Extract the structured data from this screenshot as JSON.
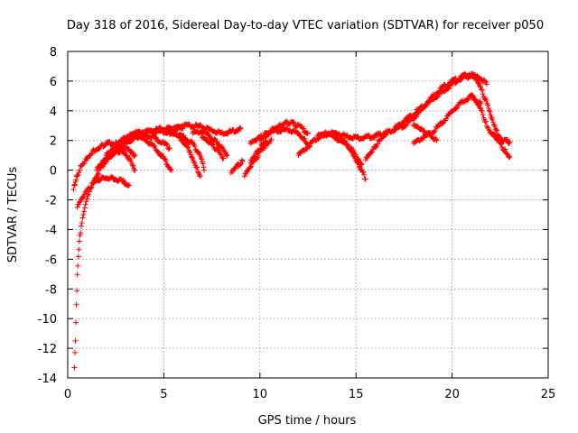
{
  "chart_data": {
    "type": "scatter",
    "title": "Day 318 of 2016, Sidereal Day-to-day VTEC variation (SDTVAR) for receiver p050",
    "xlabel": "GPS time / hours",
    "ylabel": "SDTVAR / TECUs",
    "xlim": [
      0,
      25
    ],
    "ylim": [
      -14,
      8
    ],
    "xticks": [
      0,
      5,
      10,
      15,
      20,
      25
    ],
    "xtick_labels": [
      "0",
      "5",
      "10",
      "15",
      "20",
      "25"
    ],
    "yticks": [
      -14,
      -12,
      -10,
      -8,
      -6,
      -4,
      -2,
      0,
      2,
      4,
      6,
      8
    ],
    "ytick_labels": [
      "-14",
      "-12",
      "-10",
      "-8",
      "-6",
      "-4",
      "-2",
      "0",
      "2",
      "4",
      "6",
      "8"
    ],
    "grid": true,
    "marker": "+",
    "color": "#ff0000",
    "series": [
      {
        "name": "s1",
        "x": [
          0.35,
          0.4,
          0.45,
          0.5,
          0.55,
          0.6,
          0.7,
          0.85,
          1.0,
          1.2,
          1.5,
          1.8,
          2.2,
          2.6,
          3.0,
          3.5,
          4.0,
          4.5,
          5.0,
          5.5,
          6.0
        ],
        "y": [
          -13.3,
          -11.5,
          -9.0,
          -7.0,
          -5.8,
          -4.8,
          -3.8,
          -2.8,
          -2.0,
          -1.2,
          -0.4,
          0.3,
          0.9,
          1.4,
          1.8,
          2.2,
          2.5,
          2.7,
          2.8,
          2.8,
          2.8
        ]
      },
      {
        "name": "s2",
        "x": [
          0.3,
          0.4,
          0.5,
          0.7,
          1.0,
          1.3,
          1.7,
          2.0,
          2.5,
          3.0,
          3.5
        ],
        "y": [
          -1.3,
          -0.8,
          -0.3,
          0.3,
          0.8,
          1.3,
          1.6,
          1.8,
          1.8,
          1.5,
          1.0
        ]
      },
      {
        "name": "s3",
        "x": [
          0.5,
          0.8,
          1.1,
          1.5,
          1.9,
          2.3,
          2.8,
          3.2
        ],
        "y": [
          -2.5,
          -1.8,
          -1.2,
          -0.7,
          -0.5,
          -0.5,
          -0.7,
          -1.0
        ]
      },
      {
        "name": "s4",
        "x": [
          1.5,
          2.0,
          2.5,
          3.0,
          3.5,
          4.0,
          4.5,
          5.0,
          5.3
        ],
        "y": [
          0.0,
          0.8,
          1.6,
          2.2,
          2.5,
          2.4,
          2.2,
          1.8,
          1.5
        ]
      },
      {
        "name": "s5",
        "x": [
          1.8,
          2.2,
          2.6,
          3.0,
          3.3,
          3.5
        ],
        "y": [
          0.5,
          1.0,
          1.3,
          1.1,
          0.6,
          0.0
        ]
      },
      {
        "name": "s6",
        "x": [
          2.0,
          2.5,
          3.0,
          3.5,
          4.0,
          4.5,
          5.0,
          5.4
        ],
        "y": [
          1.0,
          1.5,
          2.0,
          2.3,
          2.1,
          1.6,
          0.8,
          0.0
        ]
      },
      {
        "name": "s7",
        "x": [
          3.5,
          4.0,
          4.5,
          5.0,
          5.5,
          6.0,
          6.5,
          6.8,
          7.0,
          7.1
        ],
        "y": [
          2.5,
          2.6,
          2.6,
          2.6,
          2.5,
          2.3,
          1.8,
          1.2,
          0.5,
          0.0
        ]
      },
      {
        "name": "s8",
        "x": [
          5.0,
          5.5,
          6.0,
          6.3,
          6.5,
          6.7,
          6.9
        ],
        "y": [
          2.5,
          2.5,
          2.0,
          1.4,
          0.8,
          0.2,
          -0.4
        ]
      },
      {
        "name": "s9",
        "x": [
          5.5,
          6.0,
          6.5,
          7.0,
          7.5,
          8.0,
          8.5,
          9.0
        ],
        "y": [
          2.8,
          3.0,
          3.0,
          2.9,
          2.7,
          2.5,
          2.6,
          2.8
        ]
      },
      {
        "name": "s10",
        "x": [
          6.5,
          7.0,
          7.5,
          7.8,
          8.1,
          8.3
        ],
        "y": [
          2.5,
          2.6,
          2.2,
          1.8,
          1.4,
          1.0
        ]
      },
      {
        "name": "s11",
        "x": [
          7.0,
          7.3,
          7.6,
          7.9,
          8.1
        ],
        "y": [
          2.2,
          1.9,
          1.6,
          1.2,
          0.8
        ]
      },
      {
        "name": "s12",
        "x": [
          8.5,
          8.7,
          8.9,
          9.1
        ],
        "y": [
          -0.2,
          0.1,
          0.4,
          0.6
        ]
      },
      {
        "name": "s13",
        "x": [
          9.5,
          9.8,
          10.1,
          10.4,
          10.7,
          11.0,
          11.3,
          11.6,
          12.0,
          12.5
        ],
        "y": [
          1.8,
          2.0,
          2.3,
          2.5,
          2.8,
          3.0,
          3.2,
          3.2,
          3.0,
          2.5
        ]
      },
      {
        "name": "s14",
        "x": [
          9.2,
          9.5,
          9.8,
          10.1,
          10.4,
          10.6
        ],
        "y": [
          -0.4,
          0.2,
          0.8,
          1.4,
          1.8,
          2.1
        ]
      },
      {
        "name": "s15",
        "x": [
          9.5,
          9.7,
          9.9,
          10.1,
          10.3
        ],
        "y": [
          0.5,
          0.9,
          1.3,
          1.7,
          2.0
        ]
      },
      {
        "name": "s16",
        "x": [
          10.0,
          10.5,
          11.0,
          11.5,
          12.0,
          12.3,
          12.6
        ],
        "y": [
          2.0,
          2.5,
          2.7,
          2.7,
          2.5,
          2.1,
          1.6
        ]
      },
      {
        "name": "s17",
        "x": [
          12.0,
          12.5,
          13.0,
          13.5,
          14.0,
          14.5,
          15.0,
          15.5,
          16.0,
          16.5
        ],
        "y": [
          1.0,
          1.6,
          2.2,
          2.5,
          2.5,
          2.3,
          2.2,
          2.2,
          2.3,
          2.5
        ]
      },
      {
        "name": "s18",
        "x": [
          13.0,
          13.5,
          14.0,
          14.5,
          14.8,
          15.1,
          15.3,
          15.5
        ],
        "y": [
          2.3,
          2.4,
          2.2,
          1.8,
          1.2,
          0.5,
          0.0,
          -0.6
        ]
      },
      {
        "name": "s19",
        "x": [
          14.0,
          14.3,
          14.6,
          14.9,
          15.1,
          15.3
        ],
        "y": [
          2.0,
          1.9,
          1.6,
          1.2,
          0.8,
          0.4
        ]
      },
      {
        "name": "s20",
        "x": [
          15.5,
          15.8,
          16.0,
          16.2,
          16.4,
          16.6
        ],
        "y": [
          0.7,
          1.2,
          1.6,
          2.0,
          2.3,
          2.5
        ]
      },
      {
        "name": "s21",
        "x": [
          16.5,
          17.0,
          17.5,
          18.0,
          18.5,
          19.0,
          19.5,
          20.0,
          20.5,
          21.0,
          21.5,
          21.8
        ],
        "y": [
          2.5,
          2.7,
          3.0,
          3.5,
          4.2,
          5.0,
          5.6,
          6.0,
          6.2,
          6.4,
          6.2,
          5.8
        ]
      },
      {
        "name": "s22",
        "x": [
          17.0,
          17.5,
          18.0,
          18.5,
          19.0,
          19.5,
          20.0,
          20.5,
          21.0
        ],
        "y": [
          2.8,
          3.3,
          3.8,
          4.3,
          4.8,
          5.3,
          5.8,
          6.3,
          6.5
        ]
      },
      {
        "name": "s23",
        "x": [
          18.0,
          18.5,
          19.0,
          19.5,
          20.0,
          20.5,
          21.0,
          21.5
        ],
        "y": [
          1.8,
          2.2,
          2.6,
          3.2,
          4.0,
          4.6,
          5.0,
          4.5
        ]
      },
      {
        "name": "s24",
        "x": [
          18.0,
          18.3,
          18.6,
          18.9,
          19.2
        ],
        "y": [
          3.0,
          2.8,
          2.5,
          2.3,
          2.0
        ]
      },
      {
        "name": "s25",
        "x": [
          21.0,
          21.3,
          21.6,
          21.9,
          22.1,
          22.3,
          22.5
        ],
        "y": [
          6.4,
          6.0,
          5.2,
          4.2,
          3.4,
          2.7,
          2.2
        ]
      },
      {
        "name": "s26",
        "x": [
          21.0,
          21.3,
          21.6,
          21.8,
          22.0,
          22.2,
          22.4,
          22.7,
          23.0
        ],
        "y": [
          5.0,
          4.5,
          3.8,
          3.0,
          2.6,
          2.4,
          2.2,
          2.0,
          1.9
        ]
      },
      {
        "name": "s27",
        "x": [
          22.0,
          22.3,
          22.6,
          22.8,
          23.0
        ],
        "y": [
          2.5,
          2.1,
          1.6,
          1.2,
          0.9
        ]
      }
    ]
  }
}
